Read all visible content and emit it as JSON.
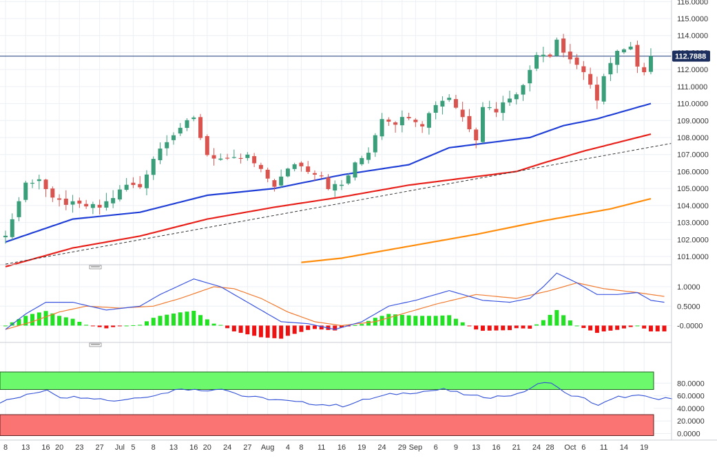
{
  "colors": {
    "background": "#ffffff",
    "grid": "#eceff4",
    "separator": "#c9ced6",
    "axis_text": "#333333",
    "candle_up": "#3a9e7a",
    "candle_down": "#d9534f",
    "ma_blue": "#1f3fd6",
    "ma_red": "#e8201a",
    "ma_orange": "#ff8c0a",
    "trendline": "#333333",
    "price_line": "#1c3b7a",
    "price_tag_bg": "#1c2f5e",
    "price_tag_text": "#ffffff",
    "macd_line": "#3a55e0",
    "signal_line": "#f07a2e",
    "hist_pos": "#22e022",
    "hist_neg": "#ee1111",
    "rsi_line": "#2f4fd6",
    "overbought_fill": "#6cf96c",
    "oversold_fill": "#fb7474"
  },
  "price_tag": "112.7888",
  "x_axis": {
    "labels": [
      {
        "text": "8",
        "index": 0
      },
      {
        "text": "13",
        "index": 3
      },
      {
        "text": "16",
        "index": 6
      },
      {
        "text": "20",
        "index": 8
      },
      {
        "text": "23",
        "index": 11
      },
      {
        "text": "27",
        "index": 14
      },
      {
        "text": "Jul",
        "index": 17
      },
      {
        "text": "5",
        "index": 19
      },
      {
        "text": "8",
        "index": 22
      },
      {
        "text": "13",
        "index": 25
      },
      {
        "text": "16",
        "index": 28
      },
      {
        "text": "20",
        "index": 30
      },
      {
        "text": "24",
        "index": 33
      },
      {
        "text": "27",
        "index": 36
      },
      {
        "text": "Aug",
        "index": 39
      },
      {
        "text": "4",
        "index": 42
      },
      {
        "text": "8",
        "index": 44
      },
      {
        "text": "11",
        "index": 47
      },
      {
        "text": "16",
        "index": 50
      },
      {
        "text": "19",
        "index": 53
      },
      {
        "text": "24",
        "index": 56
      },
      {
        "text": "29",
        "index": 59
      },
      {
        "text": "Sep",
        "index": 61
      },
      {
        "text": "6",
        "index": 64
      },
      {
        "text": "9",
        "index": 67
      },
      {
        "text": "13",
        "index": 70
      },
      {
        "text": "16",
        "index": 73
      },
      {
        "text": "21",
        "index": 76
      },
      {
        "text": "24",
        "index": 79
      },
      {
        "text": "28",
        "index": 81
      },
      {
        "text": "Oct",
        "index": 84
      },
      {
        "text": "6",
        "index": 86
      },
      {
        "text": "11",
        "index": 89
      },
      {
        "text": "14",
        "index": 92
      },
      {
        "text": "19",
        "index": 95
      }
    ]
  },
  "chart_data": [
    {
      "type": "candlestick",
      "title": "",
      "ylim": [
        100.5,
        116.0
      ],
      "y_ticks": [
        "101.0000",
        "102.0000",
        "103.0000",
        "104.0000",
        "105.0000",
        "106.0000",
        "107.0000",
        "108.0000",
        "109.0000",
        "110.0000",
        "111.0000",
        "112.0000",
        "113.0000",
        "114.0000",
        "115.0000",
        "116.0000"
      ],
      "last_price": 112.7888,
      "anchors": [
        [
          0,
          102.2
        ],
        [
          3,
          105.3
        ],
        [
          5,
          105.6
        ],
        [
          7,
          104.3
        ],
        [
          11,
          104.0
        ],
        [
          14,
          103.9
        ],
        [
          16,
          104.5
        ],
        [
          18,
          105.2
        ],
        [
          20,
          105.1
        ],
        [
          22,
          106.8
        ],
        [
          24,
          107.9
        ],
        [
          26,
          108.6
        ],
        [
          28,
          109.1
        ],
        [
          30,
          107.0
        ],
        [
          33,
          106.6
        ],
        [
          36,
          106.9
        ],
        [
          38,
          106.0
        ],
        [
          40,
          105.2
        ],
        [
          43,
          106.5
        ],
        [
          45,
          106.1
        ],
        [
          47,
          105.8
        ],
        [
          48,
          105.1
        ],
        [
          50,
          105.2
        ],
        [
          52,
          106.4
        ],
        [
          54,
          107.2
        ],
        [
          56,
          109.2
        ],
        [
          58,
          108.9
        ],
        [
          60,
          109.3
        ],
        [
          62,
          108.8
        ],
        [
          64,
          110.0
        ],
        [
          66,
          110.4
        ],
        [
          68,
          109.2
        ],
        [
          70,
          108.0
        ],
        [
          71,
          109.9
        ],
        [
          73,
          109.6
        ],
        [
          75,
          110.4
        ],
        [
          77,
          111.0
        ],
        [
          79,
          113.0
        ],
        [
          81,
          112.9
        ],
        [
          82,
          113.8
        ],
        [
          83,
          113.0
        ],
        [
          85,
          112.3
        ],
        [
          86,
          111.7
        ],
        [
          88,
          110.3
        ],
        [
          89,
          111.6
        ],
        [
          91,
          113.0
        ],
        [
          93,
          113.2
        ],
        [
          94,
          112.3
        ],
        [
          95,
          112.0
        ],
        [
          96,
          112.7888
        ]
      ],
      "moving_averages": [
        {
          "name": "",
          "color": "#1f3fd6",
          "points": [
            [
              0,
              101.85
            ],
            [
              10,
              103.2
            ],
            [
              20,
              103.6
            ],
            [
              30,
              104.6
            ],
            [
              40,
              105.0
            ],
            [
              50,
              105.8
            ],
            [
              60,
              106.4
            ],
            [
              66,
              107.4
            ],
            [
              72,
              107.7
            ],
            [
              78,
              108.0
            ],
            [
              83,
              108.7
            ],
            [
              88,
              109.1
            ],
            [
              96,
              110.0
            ]
          ]
        },
        {
          "name": "",
          "color": "#e8201a",
          "points": [
            [
              0,
              100.4
            ],
            [
              10,
              101.5
            ],
            [
              20,
              102.2
            ],
            [
              30,
              103.2
            ],
            [
              40,
              103.9
            ],
            [
              50,
              104.5
            ],
            [
              60,
              105.2
            ],
            [
              70,
              105.7
            ],
            [
              76,
              106.0
            ],
            [
              80,
              106.5
            ],
            [
              86,
              107.2
            ],
            [
              96,
              108.2
            ]
          ]
        },
        {
          "name": "",
          "color": "#ff8c0a",
          "points": [
            [
              44,
              100.65
            ],
            [
              50,
              100.9
            ],
            [
              60,
              101.6
            ],
            [
              70,
              102.3
            ],
            [
              80,
              103.1
            ],
            [
              90,
              103.8
            ],
            [
              96,
              104.4
            ]
          ]
        }
      ],
      "trendline": {
        "start": [
          0,
          100.55
        ],
        "end": [
          99,
          107.65
        ]
      }
    },
    {
      "type": "macd",
      "ylim": [
        -0.35,
        1.35
      ],
      "y_ticks": [
        "-0.0000",
        "0.5000",
        "1.0000"
      ],
      "macd_anchors": [
        [
          0,
          -0.1
        ],
        [
          3,
          0.3
        ],
        [
          6,
          0.6
        ],
        [
          10,
          0.6
        ],
        [
          15,
          0.4
        ],
        [
          20,
          0.5
        ],
        [
          23,
          0.8
        ],
        [
          28,
          1.2
        ],
        [
          32,
          1.0
        ],
        [
          36,
          0.6
        ],
        [
          41,
          0.1
        ],
        [
          45,
          0.05
        ],
        [
          49,
          -0.1
        ],
        [
          53,
          0.1
        ],
        [
          57,
          0.5
        ],
        [
          61,
          0.65
        ],
        [
          66,
          0.9
        ],
        [
          71,
          0.65
        ],
        [
          75,
          0.6
        ],
        [
          78,
          0.7
        ],
        [
          80,
          1.0
        ],
        [
          82,
          1.35
        ],
        [
          85,
          1.1
        ],
        [
          88,
          0.8
        ],
        [
          91,
          0.8
        ],
        [
          94,
          0.85
        ],
        [
          96,
          0.65
        ],
        [
          98,
          0.6
        ]
      ],
      "signal_anchors": [
        [
          0,
          -0.1
        ],
        [
          4,
          0.1
        ],
        [
          8,
          0.35
        ],
        [
          12,
          0.5
        ],
        [
          17,
          0.45
        ],
        [
          22,
          0.5
        ],
        [
          26,
          0.7
        ],
        [
          31,
          1.0
        ],
        [
          34,
          0.95
        ],
        [
          38,
          0.7
        ],
        [
          42,
          0.35
        ],
        [
          46,
          0.1
        ],
        [
          50,
          0.0
        ],
        [
          55,
          0.1
        ],
        [
          59,
          0.3
        ],
        [
          64,
          0.55
        ],
        [
          70,
          0.8
        ],
        [
          76,
          0.7
        ],
        [
          81,
          0.9
        ],
        [
          85,
          1.1
        ],
        [
          89,
          0.95
        ],
        [
          94,
          0.85
        ],
        [
          98,
          0.75
        ]
      ]
    },
    {
      "type": "rsi",
      "ylim": [
        0,
        100
      ],
      "y_ticks": [
        "0.0000",
        "20.0000",
        "40.0000",
        "60.0000",
        "80.0000"
      ],
      "overbought": 70,
      "oversold": 30,
      "rsi_anchors": [
        [
          0,
          50
        ],
        [
          3,
          58
        ],
        [
          7,
          70
        ],
        [
          9,
          58
        ],
        [
          13,
          58
        ],
        [
          17,
          52
        ],
        [
          21,
          58
        ],
        [
          24,
          63
        ],
        [
          27,
          72
        ],
        [
          30,
          68
        ],
        [
          33,
          72
        ],
        [
          36,
          60
        ],
        [
          40,
          55
        ],
        [
          44,
          50
        ],
        [
          48,
          46
        ],
        [
          51,
          44
        ],
        [
          54,
          53
        ],
        [
          58,
          62
        ],
        [
          62,
          66
        ],
        [
          66,
          70
        ],
        [
          70,
          60
        ],
        [
          73,
          58
        ],
        [
          77,
          62
        ],
        [
          80,
          78
        ],
        [
          82,
          82
        ],
        [
          84,
          64
        ],
        [
          87,
          55
        ],
        [
          89,
          45
        ],
        [
          92,
          58
        ],
        [
          95,
          60
        ],
        [
          98,
          54
        ],
        [
          100,
          57
        ]
      ]
    }
  ]
}
